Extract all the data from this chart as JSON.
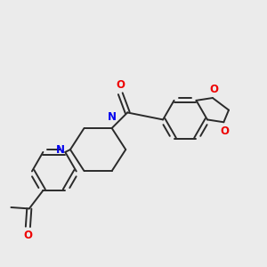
{
  "background_color": "#ebebeb",
  "bond_color": "#2a2a2a",
  "nitrogen_color": "#0000ee",
  "oxygen_color": "#ee0000",
  "bond_width": 1.4,
  "figsize": [
    3.0,
    3.0
  ],
  "dpi": 100,
  "xlim": [
    0.0,
    10.5
  ],
  "ylim": [
    -4.5,
    4.5
  ]
}
